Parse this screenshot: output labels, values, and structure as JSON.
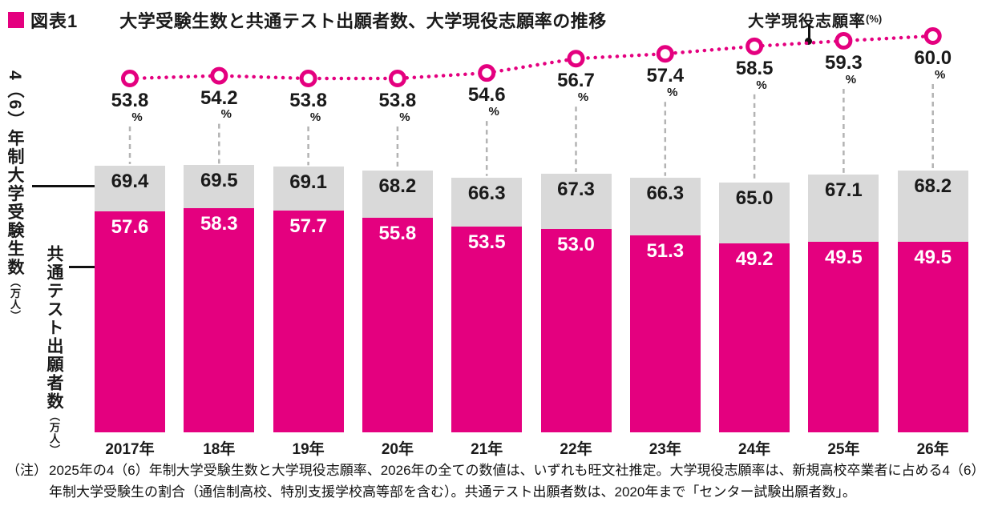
{
  "header": {
    "tag": "図表1",
    "title": "大学受験生数と共通テスト出願者数、大学現役志願率の推移"
  },
  "legend": {
    "line_label": "大学現役志願率",
    "line_label_unit": "(%)"
  },
  "axis_left": {
    "label_total": "4（6）年制大学受験生数",
    "label_total_unit": "（万人）",
    "label_common": "共通テスト出願者数",
    "label_common_unit": "（万人）"
  },
  "note": {
    "label": "（注）",
    "text": "2025年の4（6）年制大学受験生数と大学現役志願率、2026年の全ての数値は、いずれも旺文社推定。大学現役志願率は、新規高校卒業者に占める4（6）年制大学受験生の割合（通信制高校、特別支援学校高等部を含む）。共通テスト出願者数は、2020年まで「センター試験出願者数」。"
  },
  "chart_data": {
    "type": "bar",
    "subtype": "overlay-bars-with-dotted-line",
    "title": "大学受験生数と共通テスト出願者数、大学現役志願率の推移",
    "categories": [
      "2017年",
      "18年",
      "19年",
      "20年",
      "21年",
      "22年",
      "23年",
      "24年",
      "25年",
      "26年"
    ],
    "series": [
      {
        "name": "4（6）年制大学受験生数（万人）",
        "type": "bar",
        "color": "#d9d9d9",
        "values": [
          69.4,
          69.5,
          69.1,
          68.2,
          66.3,
          67.3,
          66.3,
          65.0,
          67.1,
          68.2
        ]
      },
      {
        "name": "共通テスト出願者数（万人）",
        "type": "bar",
        "color": "#e4007f",
        "values": [
          57.6,
          58.3,
          57.7,
          55.8,
          53.5,
          53.0,
          51.3,
          49.2,
          49.5,
          49.5
        ]
      },
      {
        "name": "大学現役志願率（%）",
        "type": "line",
        "style": "dotted",
        "color": "#e4007f",
        "values": [
          53.8,
          54.2,
          53.8,
          53.8,
          54.6,
          56.7,
          57.4,
          58.5,
          59.3,
          60.0
        ]
      }
    ],
    "value_unit_line": "%",
    "bar_axis_range": [
      0,
      70
    ],
    "line_axis_range": [
      53,
      61
    ],
    "grid": false,
    "legend_position": "top-right"
  }
}
